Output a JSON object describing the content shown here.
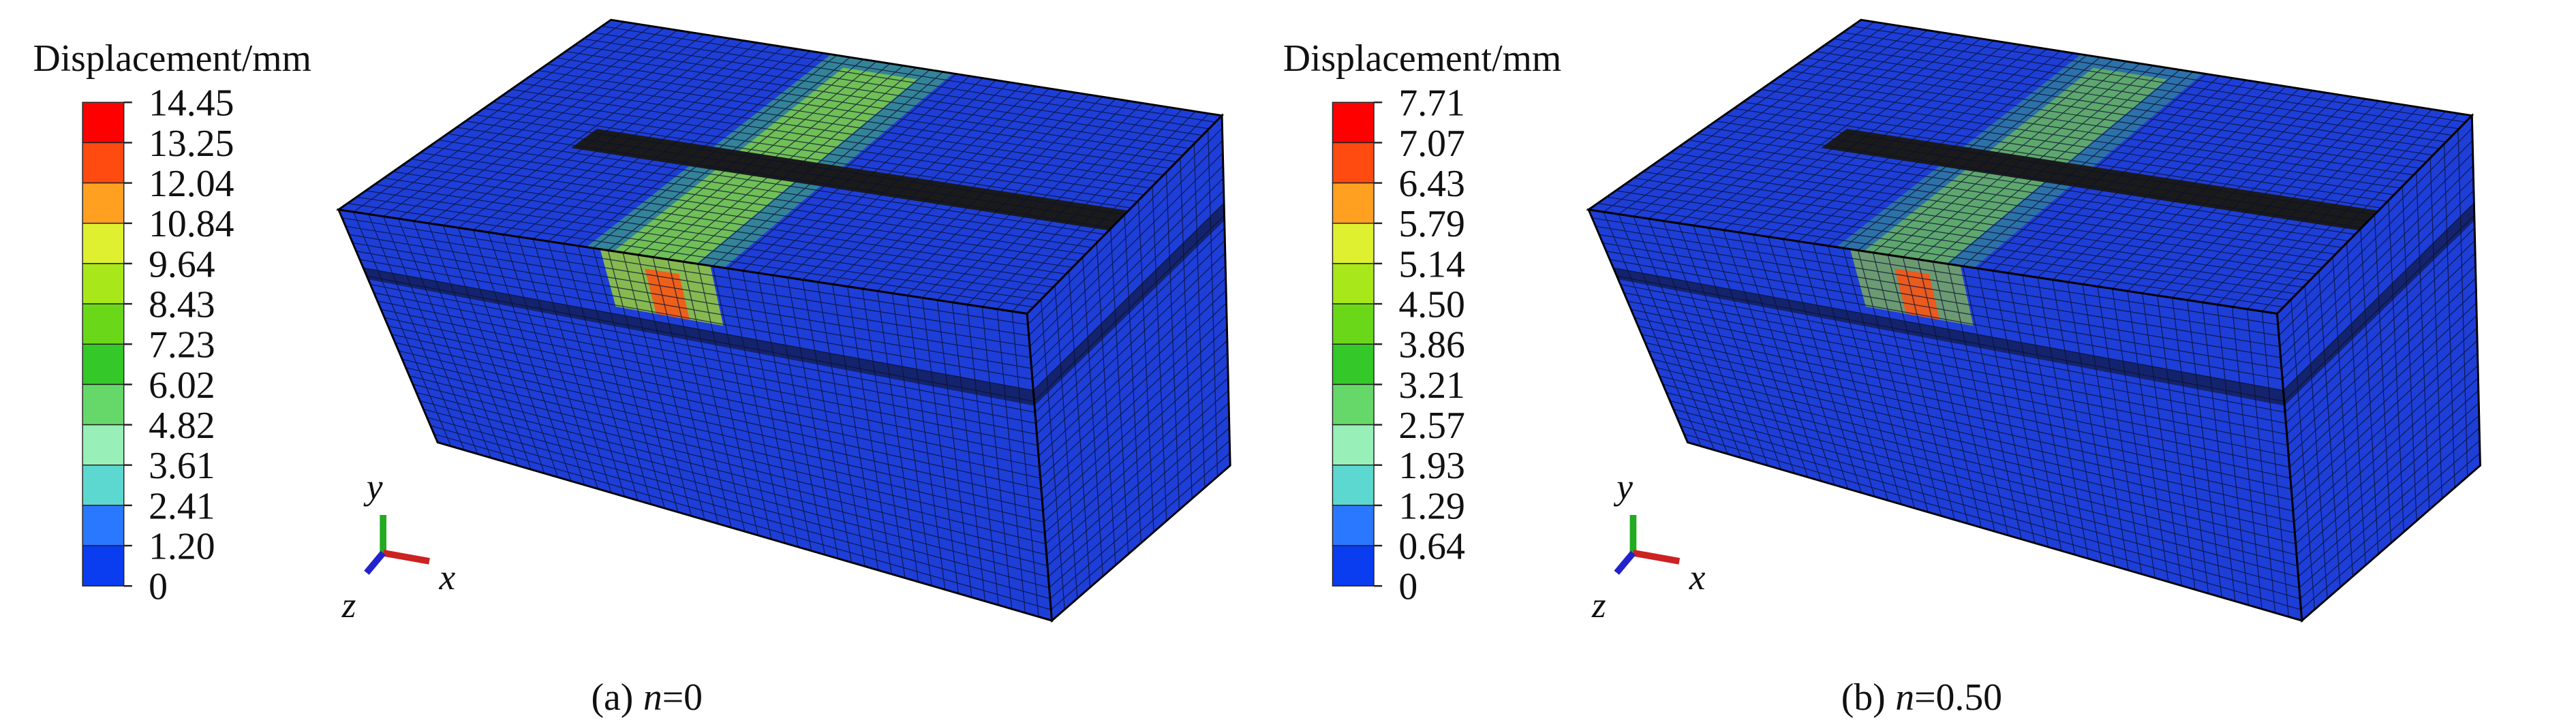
{
  "panels": [
    {
      "legend": {
        "title": "Displacement/mm",
        "labels": [
          "14.45",
          "13.25",
          "12.04",
          "10.84",
          "9.64",
          "8.43",
          "7.23",
          "6.02",
          "4.82",
          "3.61",
          "2.41",
          "1.20",
          "0"
        ]
      },
      "triad": {
        "x": "x",
        "y": "y",
        "z": "z"
      },
      "caption": {
        "label": "(a)",
        "variable": "n",
        "value": "=0"
      }
    },
    {
      "legend": {
        "title": "Displacement/mm",
        "labels": [
          "7.71",
          "7.07",
          "6.43",
          "5.79",
          "5.14",
          "4.50",
          "3.86",
          "3.21",
          "2.57",
          "1.93",
          "1.29",
          "0.64",
          "0"
        ]
      },
      "triad": {
        "x": "x",
        "y": "y",
        "z": "z"
      },
      "caption": {
        "label": "(b)",
        "variable": "n",
        "value": "=0.50"
      }
    }
  ]
}
